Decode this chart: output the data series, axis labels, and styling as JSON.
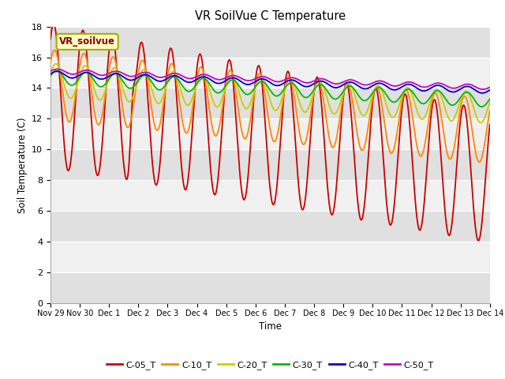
{
  "title": "VR SoilVue C Temperature",
  "xlabel": "Time",
  "ylabel": "Soil Temperature (C)",
  "ylim": [
    0,
    18
  ],
  "yticks": [
    0,
    2,
    4,
    6,
    8,
    10,
    12,
    14,
    16,
    18
  ],
  "annotation_label": "VR_soilvue",
  "colors": {
    "C-05_T": "#cc0000",
    "C-10_T": "#ff8800",
    "C-20_T": "#cccc00",
    "C-30_T": "#00bb00",
    "C-40_T": "#0000cc",
    "C-50_T": "#cc00cc"
  },
  "bg_bands": [
    [
      0,
      2,
      "#e0e0e0"
    ],
    [
      2,
      4,
      "#f0f0f0"
    ],
    [
      4,
      6,
      "#e0e0e0"
    ],
    [
      6,
      8,
      "#f0f0f0"
    ],
    [
      8,
      10,
      "#e0e0e0"
    ],
    [
      10,
      12,
      "#f0f0f0"
    ],
    [
      12,
      14,
      "#e0e0e0"
    ],
    [
      14,
      16,
      "#f0f0f0"
    ],
    [
      16,
      18,
      "#e0e0e0"
    ]
  ],
  "x_tick_labels": [
    "Nov 29",
    "Nov 30",
    "Dec 1",
    "Dec 2",
    "Dec 3",
    "Dec 4",
    "Dec 5",
    "Dec 6",
    "Dec 7",
    "Dec 8",
    "Dec 9",
    "Dec 10",
    "Dec 11",
    "Dec 12",
    "Dec 13",
    "Dec 14"
  ],
  "num_points": 1000
}
